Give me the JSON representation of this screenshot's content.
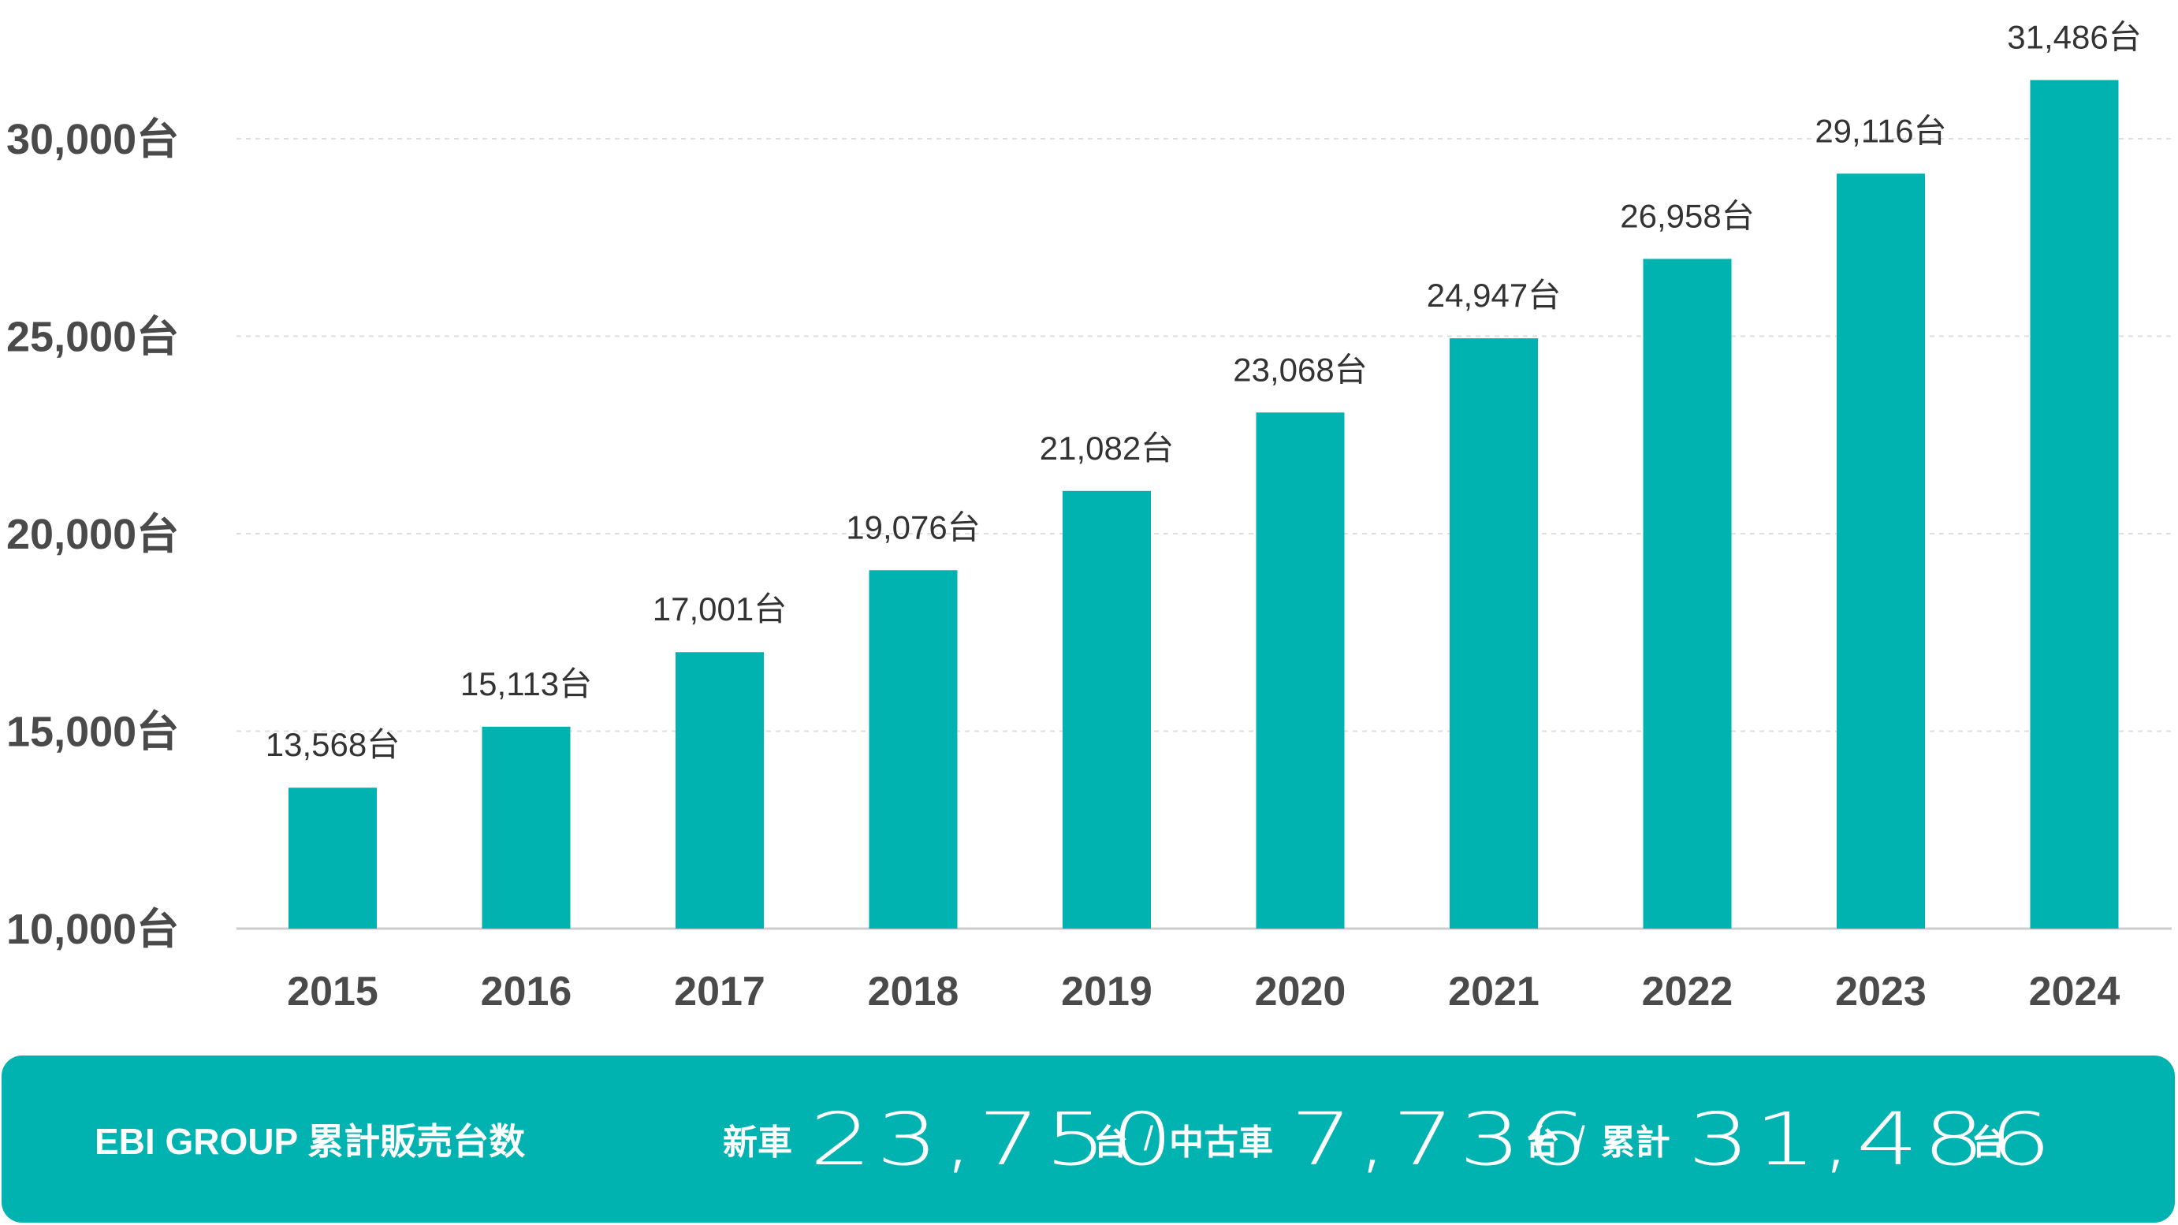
{
  "chart_data": {
    "type": "bar",
    "categories": [
      "2015",
      "2016",
      "2017",
      "2018",
      "2019",
      "2020",
      "2021",
      "2022",
      "2023",
      "2024"
    ],
    "values": [
      13568,
      15113,
      17001,
      19076,
      21082,
      23068,
      24947,
      26958,
      29116,
      31486
    ],
    "value_labels": [
      "13,568台",
      "15,113台",
      "17,001台",
      "19,076台",
      "21,082台",
      "23,068台",
      "24,947台",
      "26,958台",
      "29,116台",
      "31,486台"
    ],
    "y_ticks": [
      10000,
      15000,
      20000,
      25000,
      30000
    ],
    "y_tick_labels": [
      "10,000台",
      "15,000台",
      "20,000台",
      "25,000台",
      "30,000台"
    ],
    "ylim": [
      10000,
      31500
    ],
    "grid": true,
    "bar_color": "#00b3b0",
    "title": "",
    "xlabel": "",
    "ylabel": ""
  },
  "summary": {
    "title": "EBI GROUP 累計販売台数",
    "new_label": "新車",
    "new_value": "23,750",
    "used_label": "中古車",
    "used_value": "7,736",
    "total_label": "累計",
    "total_value": "31,486",
    "unit": "台",
    "separator": "/",
    "background_color": "#00b3b0"
  }
}
